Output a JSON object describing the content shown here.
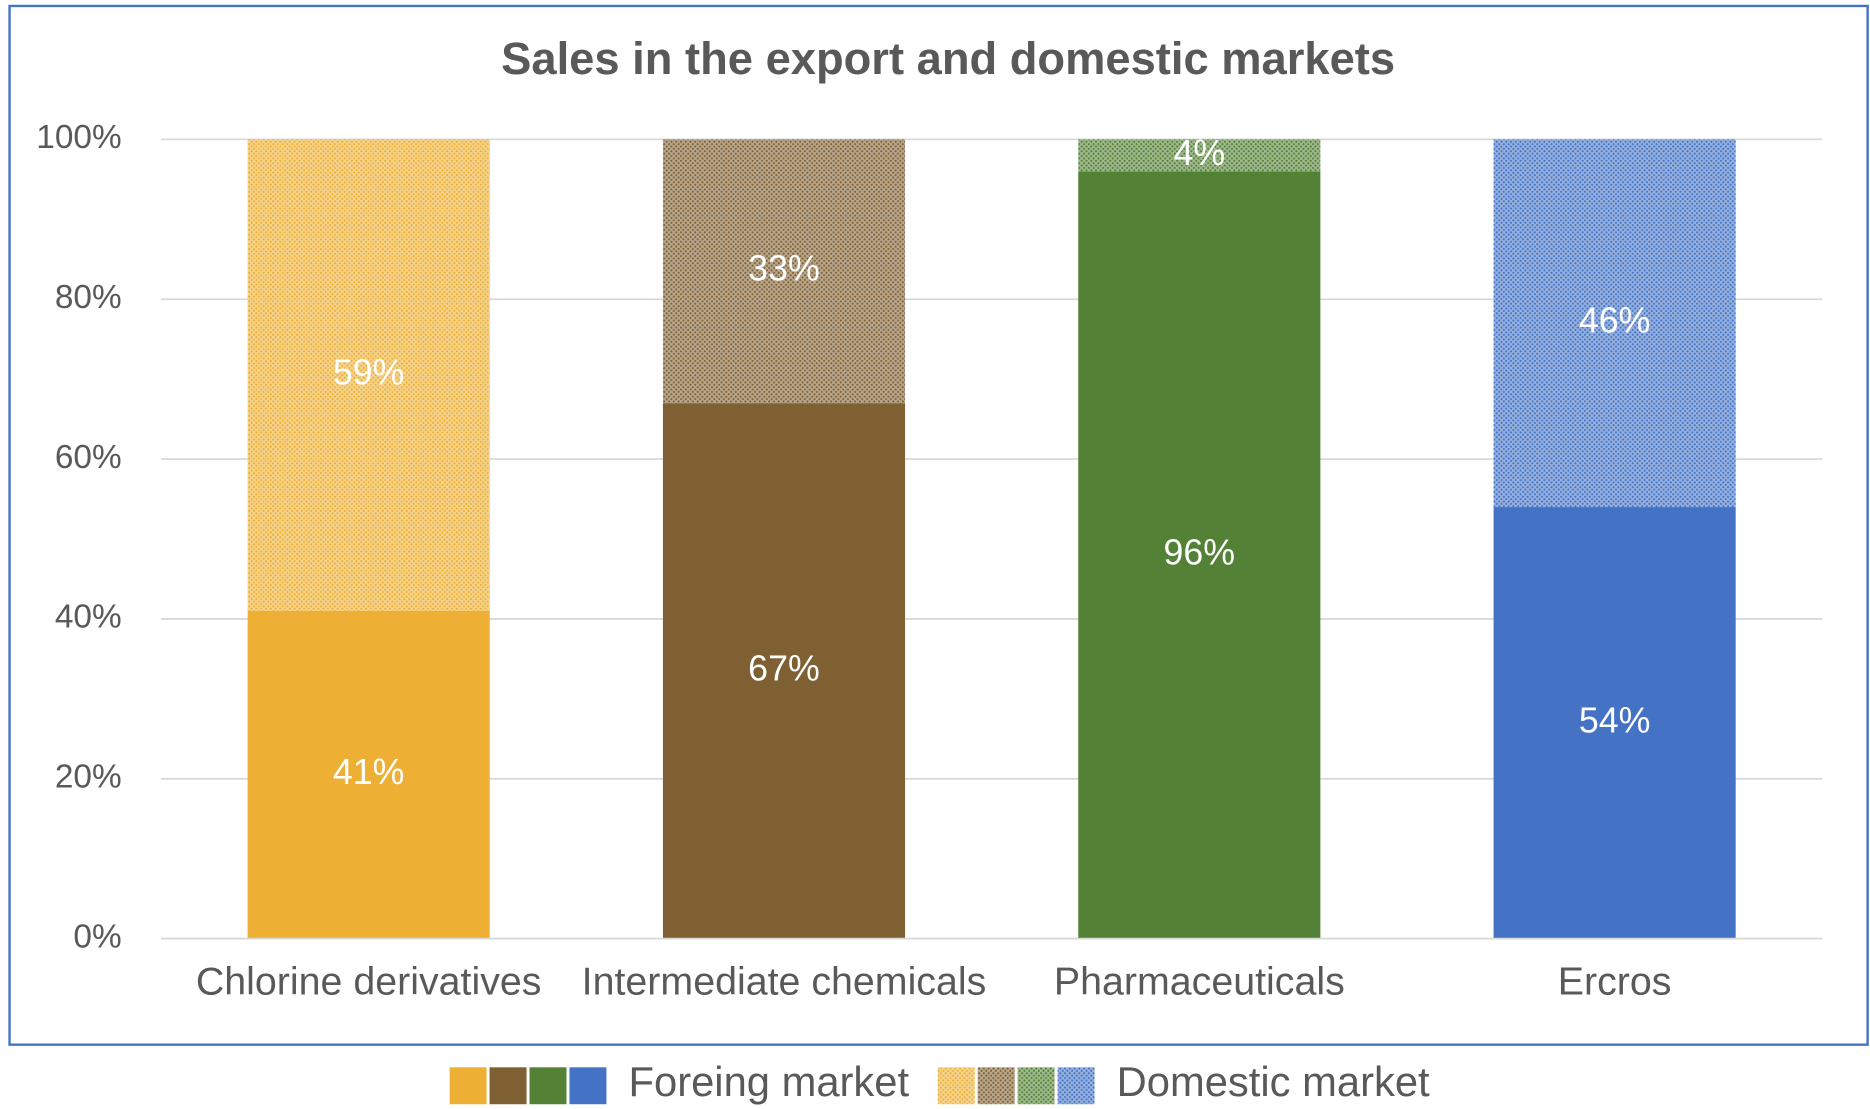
{
  "chart_data": {
    "type": "stacked_bar",
    "title": "Sales in the export and domestic markets",
    "categories": [
      "Chlorine derivatives",
      "Intermediate chemicals",
      "Pharmaceuticals",
      "Ercros"
    ],
    "series": [
      {
        "name": "Foreing market",
        "colors": [
          "#edb035",
          "#7f6032",
          "#538135",
          "#4472c4"
        ],
        "pattern": false,
        "values": [
          41,
          67,
          96,
          54
        ],
        "value_labels": [
          "41%",
          "67%",
          "96%",
          "54%"
        ]
      },
      {
        "name": "Domestic market",
        "colors": [
          "#edb035",
          "#7f6032",
          "#538135",
          "#4472c4"
        ],
        "pattern": true,
        "values": [
          59,
          33,
          4,
          46
        ],
        "value_labels": [
          "59%",
          "33%",
          "4%",
          "46%"
        ]
      }
    ],
    "ylim": [
      0,
      100
    ],
    "yticks": [
      {
        "value": 0,
        "label": "0%"
      },
      {
        "value": 20,
        "label": "20%"
      },
      {
        "value": 40,
        "label": "40%"
      },
      {
        "value": 60,
        "label": "60%"
      },
      {
        "value": 80,
        "label": "80%"
      },
      {
        "value": 100,
        "label": "100%"
      }
    ],
    "grid": true,
    "legend": "bottom"
  }
}
